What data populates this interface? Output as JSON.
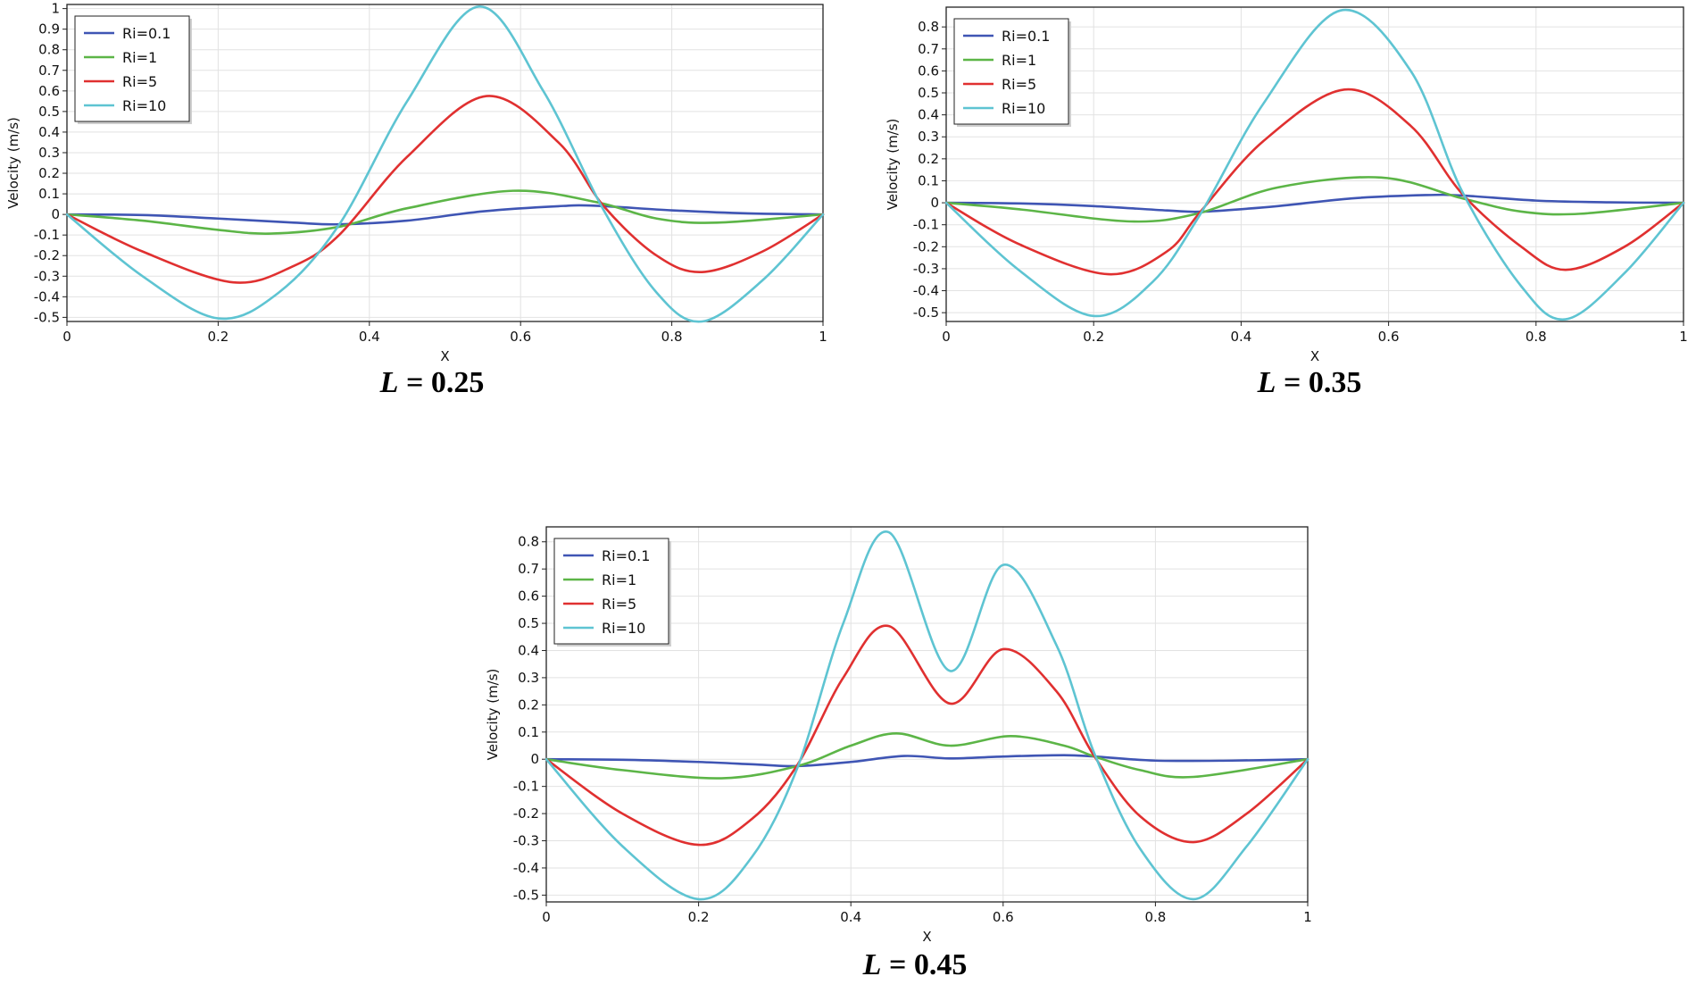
{
  "chart_data": [
    {
      "type": "line",
      "caption_var": "L",
      "caption_rest": " = 0.25",
      "xlabel": "X",
      "ylabel": "Velocity (m/s)",
      "xlim": [
        0,
        1
      ],
      "ylim": [
        -0.52,
        1.02
      ],
      "xticks": [
        0,
        0.2,
        0.4,
        0.6,
        0.8,
        1
      ],
      "xtick_labels": [
        "0",
        "0.2",
        "0.4",
        "0.6",
        "0.8",
        "1"
      ],
      "yticks": [
        -0.5,
        -0.4,
        -0.3,
        -0.2,
        -0.1,
        0,
        0.1,
        0.2,
        0.3,
        0.4,
        0.5,
        0.6,
        0.7,
        0.8,
        0.9,
        1
      ],
      "ytick_labels": [
        "-0.5",
        "-0.4",
        "-0.3",
        "-0.2",
        "-0.1",
        "0",
        "0.1",
        "0.2",
        "0.3",
        "0.4",
        "0.5",
        "0.6",
        "0.7",
        "0.8",
        "0.9",
        "1"
      ],
      "legend_position": "top-left",
      "series": [
        {
          "name": "Ri=0.1",
          "color": "#3f55b4",
          "x": [
            0,
            0.1,
            0.2,
            0.3,
            0.36,
            0.45,
            0.55,
            0.65,
            0.7,
            0.8,
            0.9,
            1
          ],
          "y": [
            0,
            -0.003,
            -0.02,
            -0.04,
            -0.048,
            -0.03,
            0.015,
            0.04,
            0.042,
            0.02,
            0.005,
            0
          ]
        },
        {
          "name": "Ri=1",
          "color": "#5cb547",
          "x": [
            0,
            0.1,
            0.2,
            0.27,
            0.36,
            0.45,
            0.59,
            0.7,
            0.78,
            0.86,
            1
          ],
          "y": [
            0,
            -0.03,
            -0.075,
            -0.093,
            -0.06,
            0.03,
            0.115,
            0.06,
            -0.02,
            -0.04,
            0
          ]
        },
        {
          "name": "Ri=5",
          "color": "#e03030",
          "x": [
            0,
            0.1,
            0.22,
            0.3,
            0.36,
            0.45,
            0.555,
            0.65,
            0.71,
            0.78,
            0.84,
            0.92,
            1
          ],
          "y": [
            0,
            -0.18,
            -0.33,
            -0.25,
            -0.1,
            0.28,
            0.575,
            0.35,
            0.04,
            -0.2,
            -0.28,
            -0.18,
            0
          ]
        },
        {
          "name": "Ri=10",
          "color": "#5ec4d2",
          "x": [
            0,
            0.1,
            0.2,
            0.28,
            0.36,
            0.45,
            0.545,
            0.63,
            0.71,
            0.78,
            0.84,
            0.92,
            1
          ],
          "y": [
            0,
            -0.3,
            -0.505,
            -0.38,
            -0.05,
            0.55,
            1.01,
            0.6,
            0.02,
            -0.38,
            -0.52,
            -0.32,
            0
          ]
        }
      ]
    },
    {
      "type": "line",
      "caption_var": "L",
      "caption_rest": " = 0.35",
      "xlabel": "X",
      "ylabel": "Velocity (m/s)",
      "xlim": [
        0,
        1
      ],
      "ylim": [
        -0.54,
        0.89
      ],
      "xticks": [
        0,
        0.2,
        0.4,
        0.6,
        0.8,
        1
      ],
      "xtick_labels": [
        "0",
        "0.2",
        "0.4",
        "0.6",
        "0.8",
        "1"
      ],
      "yticks": [
        -0.5,
        -0.4,
        -0.3,
        -0.2,
        -0.1,
        0,
        0.1,
        0.2,
        0.3,
        0.4,
        0.5,
        0.6,
        0.7,
        0.8
      ],
      "ytick_labels": [
        "-0.5",
        "-0.4",
        "-0.3",
        "-0.2",
        "-0.1",
        "0",
        "0.1",
        "0.2",
        "0.3",
        "0.4",
        "0.5",
        "0.6",
        "0.7",
        "0.8"
      ],
      "legend_position": "top-left",
      "series": [
        {
          "name": "Ri=0.1",
          "color": "#3f55b4",
          "x": [
            0,
            0.1,
            0.2,
            0.3,
            0.35,
            0.45,
            0.55,
            0.65,
            0.7,
            0.8,
            0.9,
            1
          ],
          "y": [
            0,
            -0.003,
            -0.015,
            -0.035,
            -0.04,
            -0.015,
            0.02,
            0.035,
            0.033,
            0.01,
            0.002,
            0
          ]
        },
        {
          "name": "Ri=1",
          "color": "#5cb547",
          "x": [
            0,
            0.1,
            0.25,
            0.34,
            0.45,
            0.59,
            0.7,
            0.78,
            0.86,
            1
          ],
          "y": [
            0,
            -0.03,
            -0.085,
            -0.05,
            0.07,
            0.115,
            0.02,
            -0.04,
            -0.05,
            0
          ]
        },
        {
          "name": "Ri=5",
          "color": "#e03030",
          "x": [
            0,
            0.1,
            0.22,
            0.3,
            0.345,
            0.43,
            0.54,
            0.63,
            0.7,
            0.78,
            0.84,
            0.92,
            1
          ],
          "y": [
            0,
            -0.19,
            -0.325,
            -0.22,
            -0.04,
            0.28,
            0.515,
            0.35,
            0.04,
            -0.2,
            -0.305,
            -0.2,
            0
          ]
        },
        {
          "name": "Ri=10",
          "color": "#5ec4d2",
          "x": [
            0,
            0.1,
            0.2,
            0.28,
            0.345,
            0.43,
            0.535,
            0.63,
            0.7,
            0.78,
            0.84,
            0.92,
            1
          ],
          "y": [
            0,
            -0.31,
            -0.515,
            -0.36,
            -0.05,
            0.45,
            0.875,
            0.6,
            0.05,
            -0.38,
            -0.53,
            -0.32,
            0
          ]
        }
      ]
    },
    {
      "type": "line",
      "caption_var": "L",
      "caption_rest": " = 0.45",
      "xlabel": "X",
      "ylabel": "Velocity (m/s)",
      "xlim": [
        0,
        1
      ],
      "ylim": [
        -0.525,
        0.855
      ],
      "xticks": [
        0,
        0.2,
        0.4,
        0.6,
        0.8,
        1
      ],
      "xtick_labels": [
        "0",
        "0.2",
        "0.4",
        "0.6",
        "0.8",
        "1"
      ],
      "yticks": [
        -0.5,
        -0.4,
        -0.3,
        -0.2,
        -0.1,
        0,
        0.1,
        0.2,
        0.3,
        0.4,
        0.5,
        0.6,
        0.7,
        0.8
      ],
      "ytick_labels": [
        "-0.5",
        "-0.4",
        "-0.3",
        "-0.2",
        "-0.1",
        "0",
        "0.1",
        "0.2",
        "0.3",
        "0.4",
        "0.5",
        "0.6",
        "0.7",
        "0.8"
      ],
      "legend_position": "top-left",
      "series": [
        {
          "name": "Ri=0.1",
          "color": "#3f55b4",
          "x": [
            0,
            0.1,
            0.2,
            0.28,
            0.33,
            0.4,
            0.47,
            0.53,
            0.6,
            0.68,
            0.72,
            0.8,
            0.9,
            1
          ],
          "y": [
            0,
            -0.002,
            -0.01,
            -0.02,
            -0.025,
            -0.01,
            0.012,
            0.003,
            0.01,
            0.015,
            0.01,
            -0.005,
            -0.005,
            0
          ]
        },
        {
          "name": "Ri=1",
          "color": "#5cb547",
          "x": [
            0,
            0.1,
            0.23,
            0.33,
            0.4,
            0.46,
            0.53,
            0.61,
            0.68,
            0.72,
            0.78,
            0.85,
            1
          ],
          "y": [
            0,
            -0.04,
            -0.07,
            -0.025,
            0.05,
            0.095,
            0.05,
            0.085,
            0.05,
            0.01,
            -0.04,
            -0.065,
            0
          ]
        },
        {
          "name": "Ri=5",
          "color": "#e03030",
          "x": [
            0,
            0.1,
            0.2,
            0.27,
            0.33,
            0.39,
            0.45,
            0.53,
            0.6,
            0.67,
            0.72,
            0.78,
            0.85,
            0.92,
            1
          ],
          "y": [
            0,
            -0.2,
            -0.315,
            -0.22,
            -0.02,
            0.3,
            0.49,
            0.205,
            0.405,
            0.25,
            0.01,
            -0.21,
            -0.305,
            -0.2,
            0
          ]
        },
        {
          "name": "Ri=10",
          "color": "#5ec4d2",
          "x": [
            0,
            0.1,
            0.2,
            0.27,
            0.33,
            0.39,
            0.45,
            0.53,
            0.6,
            0.67,
            0.72,
            0.78,
            0.85,
            0.92,
            1
          ],
          "y": [
            0,
            -0.32,
            -0.515,
            -0.36,
            -0.03,
            0.5,
            0.835,
            0.325,
            0.715,
            0.42,
            0.02,
            -0.33,
            -0.515,
            -0.32,
            0
          ]
        }
      ]
    }
  ]
}
